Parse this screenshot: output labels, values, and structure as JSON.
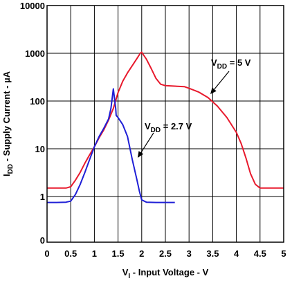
{
  "chart_data": {
    "type": "line",
    "title": "",
    "xlabel": {
      "main": "V",
      "sub": "I",
      "rest": " - Input Voltage - V"
    },
    "ylabel": {
      "main": "I",
      "sub": "DD",
      "rest": " - Supply Current - µA"
    },
    "xlim": [
      0,
      5
    ],
    "ylim": [
      0.8,
      10000
    ],
    "y_scale": "log",
    "x_ticks": [
      "0",
      "0.5",
      "1",
      "1.5",
      "2",
      "2.5",
      "3",
      "3.5",
      "4",
      "4.5",
      "5"
    ],
    "y_ticks": [
      {
        "value": 1,
        "label": "1"
      },
      {
        "value": 10,
        "label": "10"
      },
      {
        "value": 100,
        "label": "100"
      },
      {
        "value": 1000,
        "label": "1000"
      },
      {
        "value": 10000,
        "label": "10000"
      }
    ],
    "y_bottom_label": "0",
    "grid": true,
    "series": [
      {
        "color": "#e8192c",
        "points": [
          [
            0,
            1.5
          ],
          [
            0.2,
            1.5
          ],
          [
            0.4,
            1.5
          ],
          [
            0.5,
            1.6
          ],
          [
            0.6,
            2.2
          ],
          [
            0.7,
            3.2
          ],
          [
            0.8,
            5
          ],
          [
            0.9,
            7.5
          ],
          [
            1.0,
            11
          ],
          [
            1.1,
            17
          ],
          [
            1.2,
            25
          ],
          [
            1.3,
            40
          ],
          [
            1.4,
            70
          ],
          [
            1.5,
            150
          ],
          [
            1.6,
            260
          ],
          [
            1.7,
            390
          ],
          [
            1.8,
            550
          ],
          [
            1.9,
            780
          ],
          [
            1.97,
            1000
          ],
          [
            2.0,
            1050
          ],
          [
            2.1,
            750
          ],
          [
            2.2,
            480
          ],
          [
            2.3,
            300
          ],
          [
            2.4,
            225
          ],
          [
            2.5,
            210
          ],
          [
            2.7,
            205
          ],
          [
            2.9,
            200
          ],
          [
            3.0,
            185
          ],
          [
            3.2,
            155
          ],
          [
            3.4,
            118
          ],
          [
            3.6,
            78
          ],
          [
            3.8,
            45
          ],
          [
            4.0,
            22
          ],
          [
            4.1,
            13
          ],
          [
            4.2,
            6.5
          ],
          [
            4.3,
            3
          ],
          [
            4.4,
            1.8
          ],
          [
            4.5,
            1.5
          ],
          [
            4.7,
            1.5
          ],
          [
            5.0,
            1.5
          ]
        ]
      },
      {
        "color": "#1f1fd6",
        "points": [
          [
            0,
            0.75
          ],
          [
            0.2,
            0.75
          ],
          [
            0.4,
            0.76
          ],
          [
            0.5,
            0.8
          ],
          [
            0.6,
            1.1
          ],
          [
            0.7,
            1.8
          ],
          [
            0.8,
            3.2
          ],
          [
            0.9,
            6
          ],
          [
            1.0,
            11
          ],
          [
            1.1,
            18
          ],
          [
            1.2,
            27
          ],
          [
            1.3,
            42
          ],
          [
            1.35,
            70
          ],
          [
            1.4,
            180
          ],
          [
            1.45,
            70
          ],
          [
            1.46,
            50
          ],
          [
            1.5,
            45
          ],
          [
            1.6,
            32
          ],
          [
            1.7,
            18
          ],
          [
            1.8,
            6
          ],
          [
            1.9,
            2.2
          ],
          [
            1.95,
            1.3
          ],
          [
            2.0,
            0.85
          ],
          [
            2.1,
            0.76
          ],
          [
            2.3,
            0.75
          ],
          [
            2.5,
            0.75
          ],
          [
            2.7,
            0.75
          ]
        ]
      }
    ],
    "annotations": [
      {
        "main": "V",
        "sub": "DD",
        "rest": " = 5 V"
      },
      {
        "main": "V",
        "sub": "DD",
        "rest": " = 2.7 V"
      }
    ]
  }
}
